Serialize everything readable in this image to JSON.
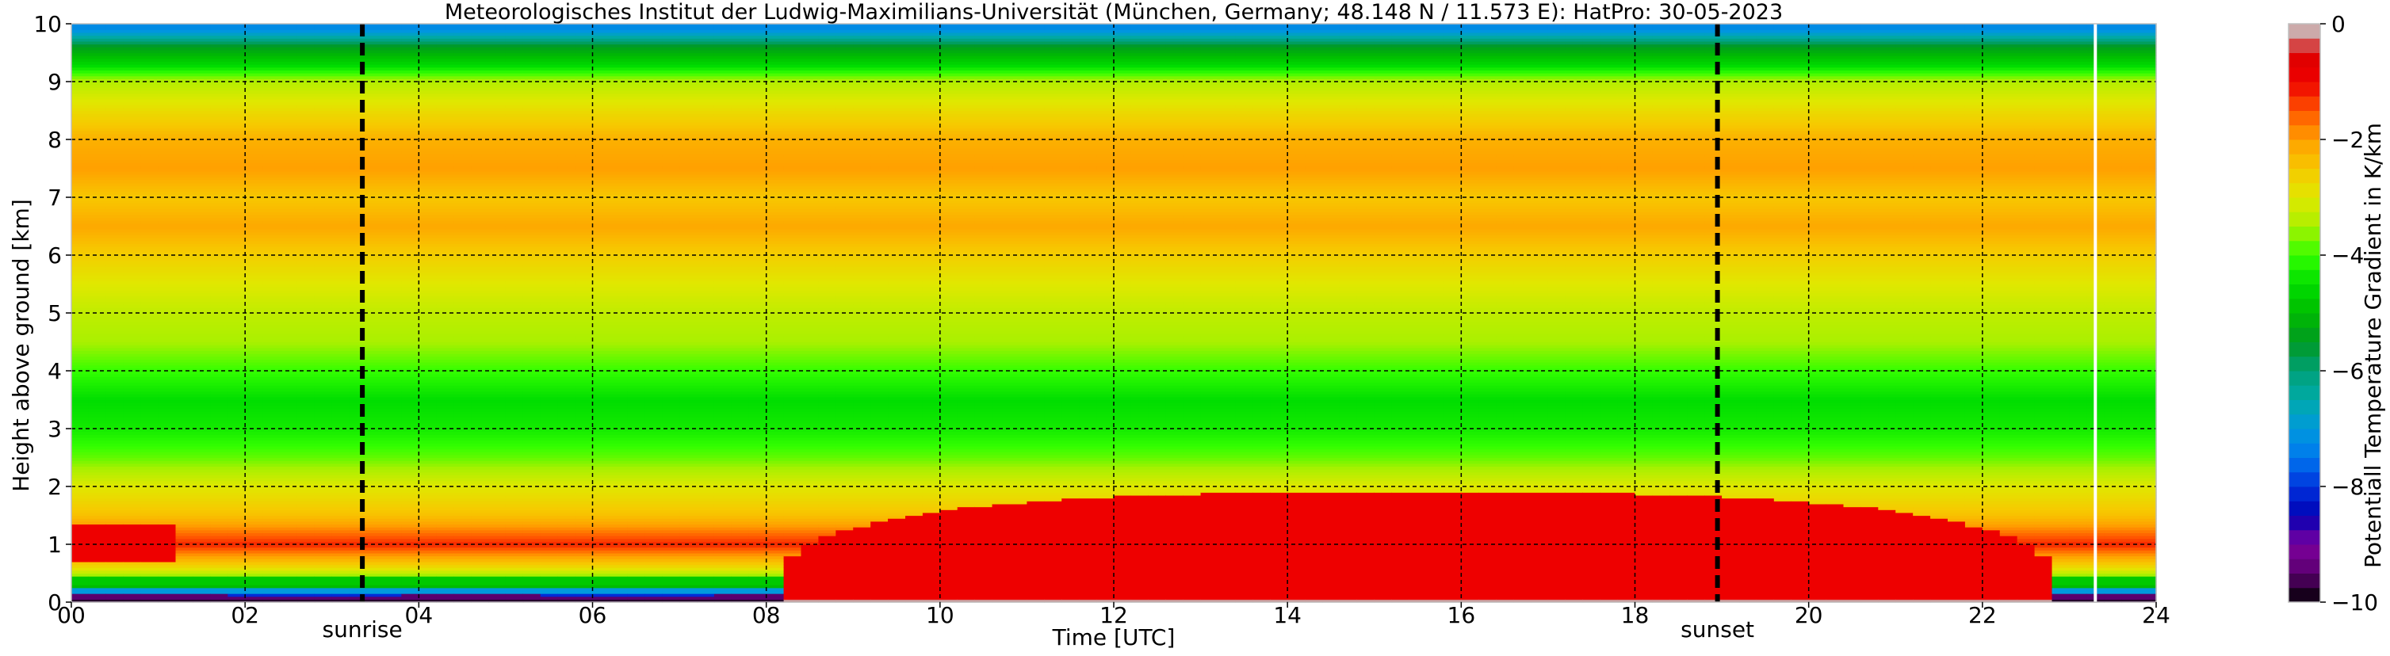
{
  "chart_data": {
    "type": "heatmap",
    "title": "Meteorologisches Institut der Ludwig-Maximilians-Universität (München, Germany; 48.148 N / 11.573 E):    HatPro: 30-05-2023",
    "xlabel": "Time [UTC]",
    "ylabel": "Height above ground [km]",
    "colorbar_label": "Potentiall Temperature Gradient in K/km",
    "xlim": [
      0,
      24
    ],
    "ylim": [
      0,
      10
    ],
    "clim": [
      -10,
      0
    ],
    "grid": true,
    "x_ticks": [
      0,
      2,
      4,
      6,
      8,
      10,
      12,
      14,
      16,
      18,
      20,
      22,
      24
    ],
    "x_tick_labels": [
      "00",
      "02",
      "04",
      "06",
      "08",
      "10",
      "12",
      "14",
      "16",
      "18",
      "20",
      "22",
      "24"
    ],
    "y_ticks": [
      0,
      1,
      2,
      3,
      4,
      5,
      6,
      7,
      8,
      9,
      10
    ],
    "y_tick_labels": [
      "0",
      "1",
      "2",
      "3",
      "4",
      "5",
      "6",
      "7",
      "8",
      "9",
      "10"
    ],
    "colorbar_ticks": [
      0,
      -2,
      -4,
      -6,
      -8,
      -10
    ],
    "colorbar_tick_labels": [
      "0",
      "−2",
      "−4",
      "−6",
      "−8",
      "−10"
    ],
    "colormap": [
      {
        "value": -10.0,
        "color": "#000000"
      },
      {
        "value": -9.5,
        "color": "#5a006e"
      },
      {
        "value": -9.0,
        "color": "#7e009e"
      },
      {
        "value": -8.5,
        "color": "#0000b4"
      },
      {
        "value": -8.0,
        "color": "#0033dd"
      },
      {
        "value": -7.5,
        "color": "#0077ee"
      },
      {
        "value": -7.0,
        "color": "#0099dd"
      },
      {
        "value": -6.5,
        "color": "#00aaaa"
      },
      {
        "value": -6.0,
        "color": "#00a077"
      },
      {
        "value": -5.5,
        "color": "#009922"
      },
      {
        "value": -5.0,
        "color": "#00bb00"
      },
      {
        "value": -4.5,
        "color": "#00dd00"
      },
      {
        "value": -4.0,
        "color": "#33ff00"
      },
      {
        "value": -3.5,
        "color": "#aaf000"
      },
      {
        "value": -3.0,
        "color": "#e0e800"
      },
      {
        "value": -2.5,
        "color": "#f7c800"
      },
      {
        "value": -2.0,
        "color": "#ffa000"
      },
      {
        "value": -1.5,
        "color": "#ff5500"
      },
      {
        "value": -1.0,
        "color": "#ee0000"
      },
      {
        "value": -0.5,
        "color": "#dd0000"
      },
      {
        "value": -0.25,
        "color": "#cc8888"
      },
      {
        "value": 0.0,
        "color": "#cccccc"
      }
    ],
    "events": [
      {
        "label": "sunrise",
        "time_utc": 3.35
      },
      {
        "label": "sunset",
        "time_utc": 18.95
      }
    ],
    "missing_data_line_time_utc": 23.3,
    "vertical_profile_typical": [
      {
        "height_km": 0.05,
        "value": -9.8
      },
      {
        "height_km": 0.15,
        "value": -7.5
      },
      {
        "height_km": 0.3,
        "value": -4.5
      },
      {
        "height_km": 0.6,
        "value": -2.8
      },
      {
        "height_km": 1.0,
        "value": -1.2
      },
      {
        "height_km": 1.5,
        "value": -2.4
      },
      {
        "height_km": 2.0,
        "value": -3.0
      },
      {
        "height_km": 2.5,
        "value": -3.8
      },
      {
        "height_km": 3.0,
        "value": -4.3
      },
      {
        "height_km": 3.5,
        "value": -4.5
      },
      {
        "height_km": 4.0,
        "value": -4.0
      },
      {
        "height_km": 4.5,
        "value": -3.5
      },
      {
        "height_km": 5.0,
        "value": -3.3
      },
      {
        "height_km": 5.5,
        "value": -3.0
      },
      {
        "height_km": 6.0,
        "value": -2.6
      },
      {
        "height_km": 6.5,
        "value": -2.1
      },
      {
        "height_km": 7.0,
        "value": -2.5
      },
      {
        "height_km": 7.5,
        "value": -2.0
      },
      {
        "height_km": 8.0,
        "value": -2.2
      },
      {
        "height_km": 8.5,
        "value": -2.8
      },
      {
        "height_km": 9.0,
        "value": -3.4
      },
      {
        "height_km": 9.3,
        "value": -4.6
      },
      {
        "height_km": 9.6,
        "value": -5.4
      },
      {
        "height_km": 9.9,
        "value": -7.2
      }
    ],
    "daytime_mixed_layer": {
      "time_start_utc": 8.2,
      "time_end_utc": 22.8,
      "top_km": 1.9,
      "value": -1.0
    },
    "night_residual_layer": {
      "time_start_utc": 0.0,
      "time_end_utc": 1.2,
      "bottom_km": 0.7,
      "top_km": 1.35,
      "value": -1.0
    }
  }
}
